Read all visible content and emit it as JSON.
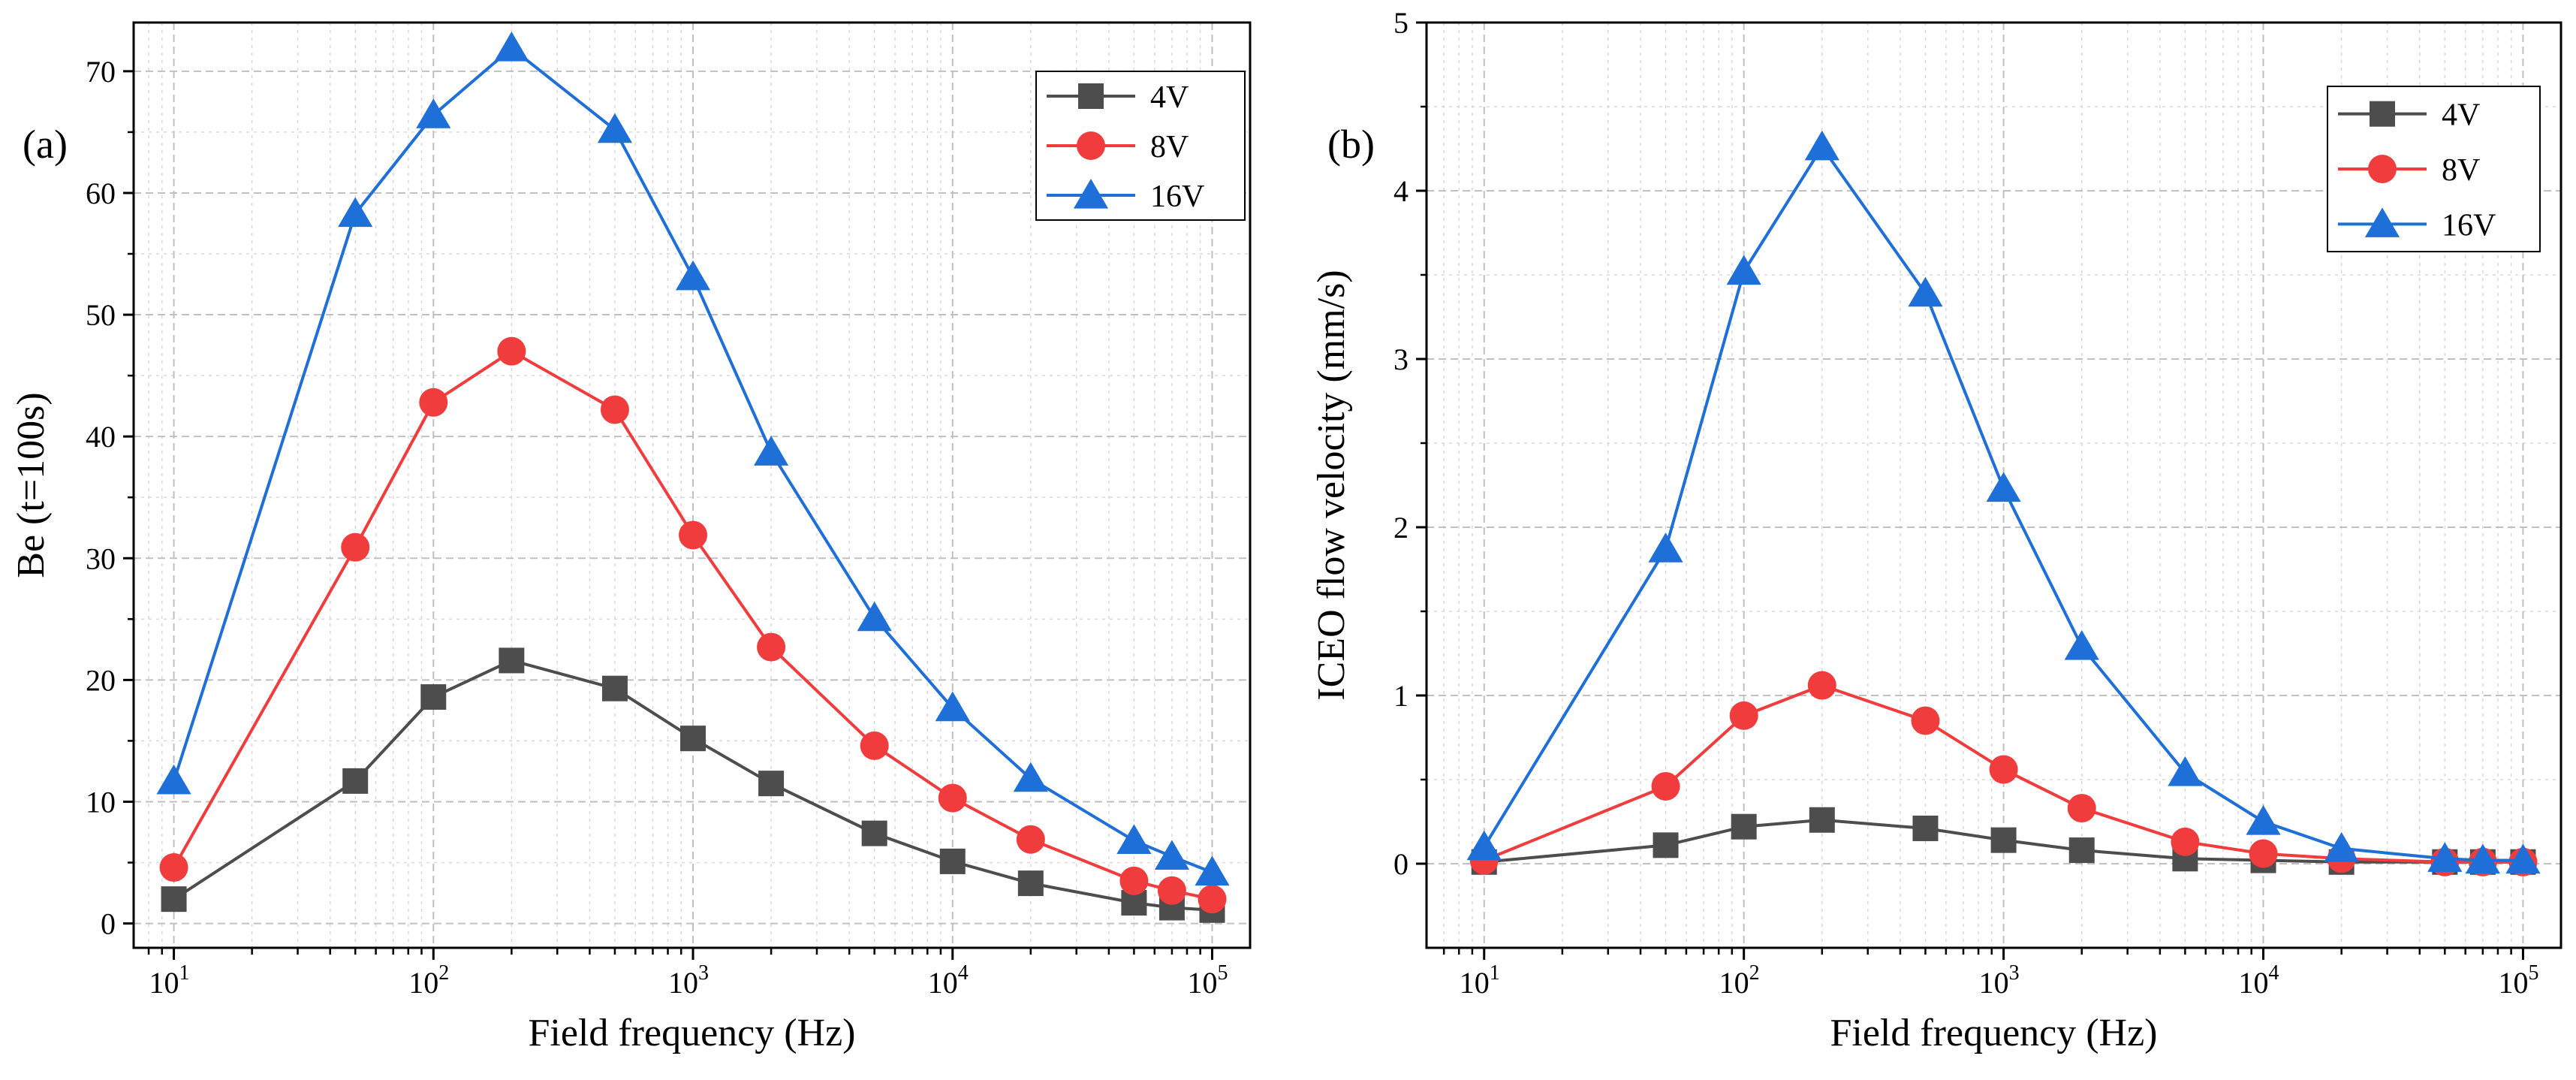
{
  "chart_data": [
    {
      "type": "line",
      "panel_label": "(a)",
      "xlabel": "Field frequency (Hz)",
      "ylabel": "Be (t=100s)",
      "xscale": "log",
      "xlim": [
        7,
        140000
      ],
      "ylim": [
        -2,
        74
      ],
      "yticks": [
        0,
        10,
        20,
        30,
        40,
        50,
        60,
        70
      ],
      "xticks": [
        {
          "value": 10,
          "base": "10",
          "exp": "1"
        },
        {
          "value": 100,
          "base": "10",
          "exp": "2"
        },
        {
          "value": 1000,
          "base": "10",
          "exp": "3"
        },
        {
          "value": 10000,
          "base": "10",
          "exp": "4"
        },
        {
          "value": 100000,
          "base": "10",
          "exp": "5"
        }
      ],
      "grid": true,
      "legend_position": "top-right",
      "x": [
        10,
        50,
        100,
        200,
        500,
        1000,
        2000,
        5000,
        10000,
        20000,
        50000,
        70000,
        100000
      ],
      "series": [
        {
          "name": "4V",
          "color": "#4d4d4d",
          "marker": "square",
          "values": [
            2.0,
            11.7,
            18.6,
            21.6,
            19.3,
            15.2,
            11.5,
            7.4,
            5.1,
            3.3,
            1.7,
            1.3,
            1.1
          ]
        },
        {
          "name": "8V",
          "color": "#f03c3c",
          "marker": "circle",
          "values": [
            4.6,
            30.9,
            42.8,
            47.0,
            42.2,
            31.9,
            22.7,
            14.6,
            10.3,
            6.9,
            3.5,
            2.7,
            2.0
          ]
        },
        {
          "name": "16V",
          "color": "#1f6fd8",
          "marker": "triangle",
          "values": [
            11.7,
            58.3,
            66.4,
            71.9,
            65.2,
            53.1,
            38.7,
            25.1,
            17.7,
            11.9,
            6.8,
            5.5,
            4.2
          ]
        }
      ]
    },
    {
      "type": "line",
      "panel_label": "(b)",
      "xlabel": "Field frequency (Hz)",
      "ylabel": "ICEO flow velocity (mm/s)",
      "xscale": "log",
      "xlim": [
        6,
        140000
      ],
      "ylim": [
        -0.5,
        5
      ],
      "yticks": [
        0,
        1,
        2,
        3,
        4,
        5
      ],
      "xticks": [
        {
          "value": 10,
          "base": "10",
          "exp": "1"
        },
        {
          "value": 100,
          "base": "10",
          "exp": "2"
        },
        {
          "value": 1000,
          "base": "10",
          "exp": "3"
        },
        {
          "value": 10000,
          "base": "10",
          "exp": "4"
        },
        {
          "value": 100000,
          "base": "10",
          "exp": "5"
        }
      ],
      "grid": true,
      "legend_position": "top-right",
      "x": [
        10,
        50,
        100,
        200,
        500,
        1000,
        2000,
        5000,
        10000,
        20000,
        50000,
        70000,
        100000
      ],
      "series": [
        {
          "name": "4V",
          "color": "#4d4d4d",
          "marker": "square",
          "values": [
            0.01,
            0.11,
            0.22,
            0.26,
            0.21,
            0.14,
            0.08,
            0.03,
            0.02,
            0.01,
            0.01,
            0.01,
            0.01
          ]
        },
        {
          "name": "8V",
          "color": "#f03c3c",
          "marker": "circle",
          "values": [
            0.02,
            0.46,
            0.88,
            1.06,
            0.85,
            0.56,
            0.33,
            0.13,
            0.06,
            0.03,
            0.01,
            0.01,
            0.01
          ]
        },
        {
          "name": "16V",
          "color": "#1f6fd8",
          "marker": "triangle",
          "values": [
            0.1,
            1.87,
            3.52,
            4.26,
            3.39,
            2.23,
            1.29,
            0.54,
            0.25,
            0.09,
            0.03,
            0.02,
            0.02
          ]
        }
      ]
    }
  ]
}
